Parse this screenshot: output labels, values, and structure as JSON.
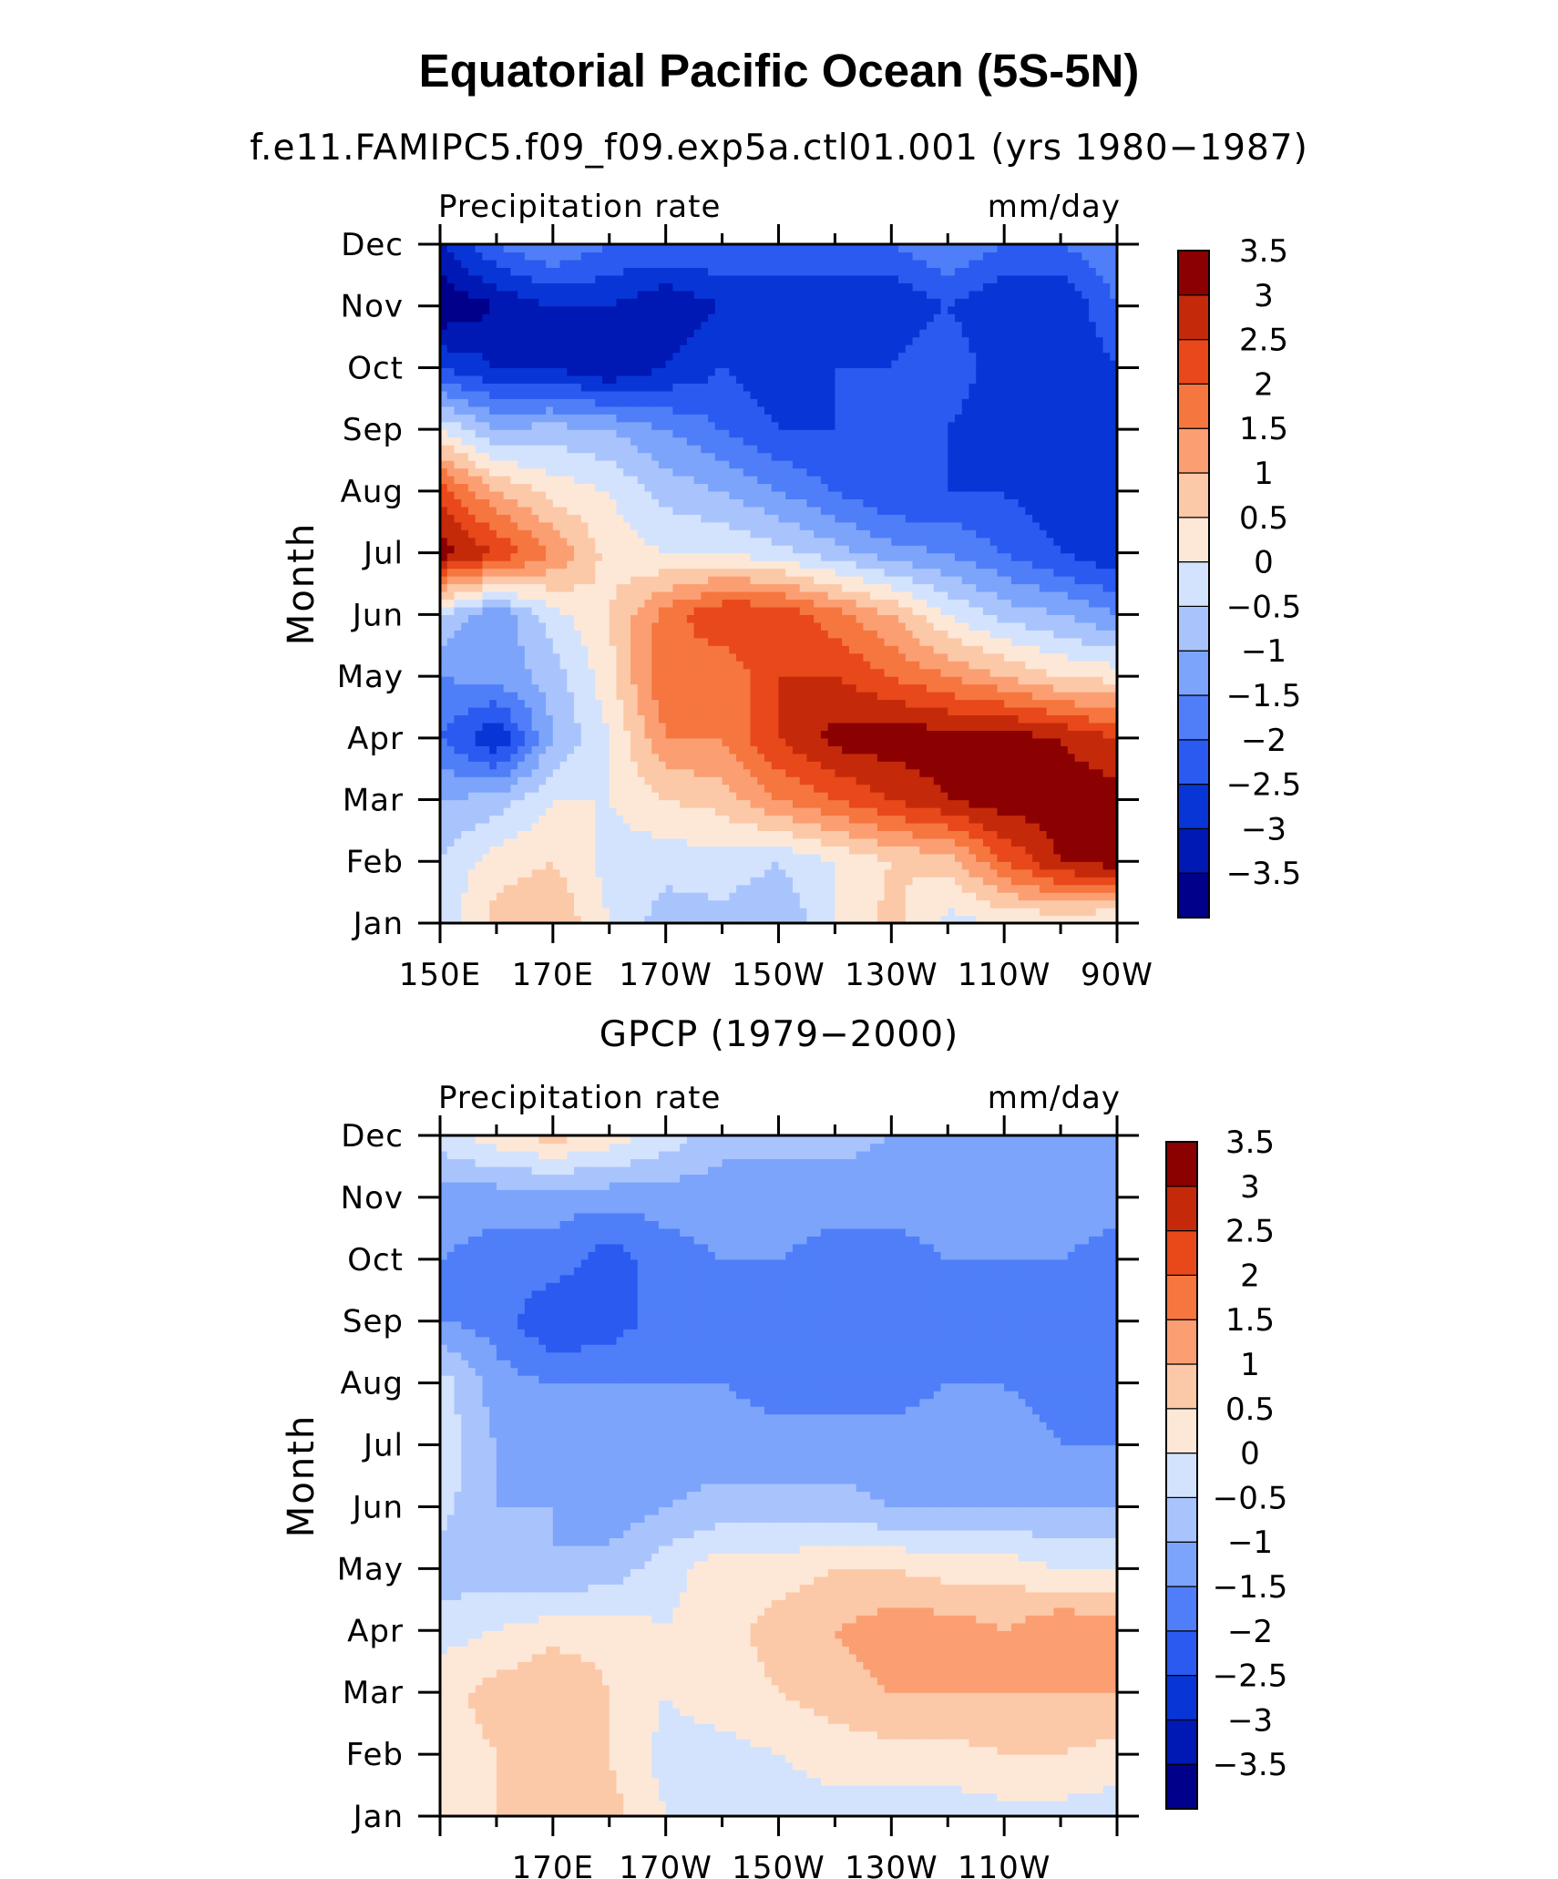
{
  "figure": {
    "title": "Equatorial Pacific Ocean (5S-5N)",
    "palette": [
      "#00008b",
      "#0018b4",
      "#0836d6",
      "#2a5af0",
      "#4f7ef8",
      "#7ca4fb",
      "#a9c4fd",
      "#d3e3fd",
      "#fde8d8",
      "#fcc9a8",
      "#fb9f73",
      "#f6763f",
      "#e8481a",
      "#c42a0a",
      "#8b0000"
    ],
    "levels": [
      "-3.5",
      "-3",
      "-2.5",
      "-2",
      "-1.5",
      "-1",
      "-0.5",
      "0",
      "0.5",
      "1",
      "1.5",
      "2",
      "2.5",
      "3",
      "3.5"
    ],
    "months": [
      "Jan",
      "Feb",
      "Mar",
      "Apr",
      "May",
      "Jun",
      "Jul",
      "Aug",
      "Sep",
      "Oct",
      "Nov",
      "Dec"
    ]
  },
  "chart_data": [
    {
      "type": "heatmap",
      "title": "f.e11.FAMIPC5.f09_f09.exp5a.ctl01.001 (yrs 1980−1987)",
      "subtitle_left": "Precipitation rate",
      "subtitle_right": "mm/day",
      "ylabel": "Month",
      "x_ticklabels": [
        "150E",
        "170E",
        "170W",
        "150W",
        "130W",
        "110W",
        "90W"
      ],
      "y_ticklabels": [
        "Jan",
        "Feb",
        "Mar",
        "Apr",
        "May",
        "Jun",
        "Jul",
        "Aug",
        "Sep",
        "Oct",
        "Nov",
        "Dec"
      ],
      "xlim": [
        "150E",
        "90W"
      ],
      "legend": "right",
      "colorbar_labels": [
        "-3.5",
        "-3",
        "-2.5",
        "-2",
        "-1.5",
        "-1",
        "-0.5",
        "0",
        "0.5",
        "1",
        "1.5",
        "2",
        "2.5",
        "3",
        "3.5"
      ],
      "longitudes": [
        "150E",
        "160E",
        "170E",
        "180",
        "170W",
        "160W",
        "150W",
        "140W",
        "130W",
        "120W",
        "110W",
        "100W",
        "90W"
      ],
      "rows": [
        {
          "month": "Jan",
          "values": [
            0.2,
            1.2,
            1.5,
            0.5,
            -0.3,
            -0.2,
            -0.5,
            0.5,
            1.2,
            0.3,
            0.5,
            0.5,
            0.3
          ]
        },
        {
          "month": "Feb",
          "values": [
            0.0,
            0.8,
            1.0,
            0.3,
            0.2,
            0.3,
            0.0,
            0.5,
            1.0,
            1.2,
            2.5,
            3.5,
            3.8
          ]
        },
        {
          "month": "Mar",
          "values": [
            -0.5,
            -0.3,
            0.5,
            0.5,
            1.0,
            1.2,
            2.0,
            2.5,
            3.0,
            3.5,
            3.8,
            3.8,
            3.8
          ]
        },
        {
          "month": "Apr",
          "values": [
            -1.5,
            -2.5,
            -0.5,
            0.5,
            2.0,
            2.0,
            3.0,
            3.7,
            3.8,
            3.8,
            3.8,
            3.5,
            3.0
          ]
        },
        {
          "month": "May",
          "values": [
            -1.0,
            -0.8,
            -0.3,
            0.8,
            2.5,
            2.0,
            3.0,
            3.0,
            2.5,
            2.0,
            1.5,
            1.0,
            0.8
          ]
        },
        {
          "month": "Jun",
          "values": [
            0.0,
            -1.0,
            0.3,
            1.0,
            2.2,
            3.0,
            3.0,
            2.2,
            1.5,
            0.5,
            -0.2,
            -0.5,
            -1.0
          ]
        },
        {
          "month": "Jul",
          "values": [
            3.8,
            3.0,
            2.0,
            0.8,
            0.5,
            0.5,
            0.2,
            -0.3,
            -0.8,
            -1.0,
            -1.5,
            -2.0,
            -2.5
          ]
        },
        {
          "month": "Aug",
          "values": [
            2.8,
            1.5,
            0.8,
            0.5,
            -0.2,
            -0.5,
            -1.0,
            -1.5,
            -2.0,
            -2.0,
            -2.0,
            -2.5,
            -2.5
          ]
        },
        {
          "month": "Sep",
          "values": [
            0.5,
            -0.5,
            -0.3,
            -0.5,
            -1.0,
            -1.5,
            -2.0,
            -2.0,
            -2.0,
            -2.0,
            -2.5,
            -2.5,
            -2.5
          ]
        },
        {
          "month": "Oct",
          "values": [
            -2.0,
            -2.5,
            -2.5,
            -3.0,
            -2.5,
            -2.0,
            -2.5,
            -2.0,
            -2.0,
            -1.5,
            -2.5,
            -2.5,
            -2.0
          ]
        },
        {
          "month": "Nov",
          "values": [
            -3.5,
            -3.0,
            -2.5,
            -2.5,
            -3.0,
            -2.5,
            -2.5,
            -2.5,
            -2.5,
            -2.0,
            -2.5,
            -2.5,
            -1.5
          ]
        },
        {
          "month": "Dec",
          "values": [
            -2.5,
            -1.5,
            -1.0,
            -1.5,
            -1.5,
            -1.5,
            -1.5,
            -1.5,
            -1.5,
            -1.0,
            -1.5,
            -1.5,
            -1.0
          ]
        }
      ]
    },
    {
      "type": "heatmap",
      "title": "GPCP (1979−2000)",
      "subtitle_left": "Precipitation rate",
      "subtitle_right": "mm/day",
      "ylabel": "Month",
      "x_ticklabels": [
        "170E",
        "170W",
        "150W",
        "130W",
        "110W"
      ],
      "y_ticklabels": [
        "Jan",
        "Feb",
        "Mar",
        "Apr",
        "May",
        "Jun",
        "Jul",
        "Aug",
        "Sep",
        "Oct",
        "Nov",
        "Dec"
      ],
      "xlim": [
        "150E",
        "90W"
      ],
      "legend": "right",
      "colorbar_labels": [
        "-3.5",
        "-3",
        "-2.5",
        "-2",
        "-1.5",
        "-1",
        "-0.5",
        "0",
        "0.5",
        "1",
        "1.5",
        "2",
        "2.5",
        "3",
        "3.5"
      ],
      "longitudes": [
        "150E",
        "160E",
        "170E",
        "180",
        "170W",
        "160W",
        "150W",
        "140W",
        "130W",
        "120W",
        "110W",
        "100W",
        "90W"
      ],
      "rows": [
        {
          "month": "Jan",
          "values": [
            0.5,
            1.0,
            1.5,
            1.2,
            0.5,
            0.2,
            0.2,
            0.2,
            0.2,
            0.2,
            0.3,
            0.3,
            0.2
          ]
        },
        {
          "month": "Feb",
          "values": [
            0.8,
            1.0,
            1.2,
            1.0,
            0.3,
            0.3,
            0.5,
            0.8,
            0.8,
            0.8,
            1.0,
            1.0,
            0.8
          ]
        },
        {
          "month": "Mar",
          "values": [
            0.8,
            1.2,
            1.5,
            1.0,
            0.5,
            0.8,
            1.0,
            1.2,
            1.5,
            1.5,
            1.5,
            1.5,
            1.5
          ]
        },
        {
          "month": "Apr",
          "values": [
            0.3,
            0.5,
            0.8,
            0.8,
            0.5,
            0.8,
            1.2,
            1.5,
            1.8,
            1.8,
            1.5,
            2.0,
            1.8
          ]
        },
        {
          "month": "May",
          "values": [
            -0.3,
            -0.3,
            -0.5,
            -0.3,
            0.3,
            0.8,
            0.8,
            1.0,
            1.0,
            0.8,
            0.8,
            0.5,
            0.5
          ]
        },
        {
          "month": "Jun",
          "values": [
            0.2,
            -0.5,
            -0.5,
            -0.8,
            -0.5,
            -0.3,
            -0.3,
            -0.3,
            -0.5,
            -0.5,
            -0.5,
            -0.5,
            -0.5
          ]
        },
        {
          "month": "Jul",
          "values": [
            0.3,
            -0.5,
            -0.8,
            -0.8,
            -0.8,
            -0.8,
            -0.8,
            -0.8,
            -0.8,
            -0.8,
            -0.8,
            -1.0,
            -1.0
          ]
        },
        {
          "month": "Aug",
          "values": [
            0.3,
            -0.8,
            -1.0,
            -1.0,
            -1.0,
            -1.0,
            -1.2,
            -1.2,
            -1.2,
            -1.0,
            -1.0,
            -1.2,
            -1.2
          ]
        },
        {
          "month": "Sep",
          "values": [
            -1.0,
            -1.2,
            -2.0,
            -1.8,
            -1.2,
            -1.0,
            -1.2,
            -1.3,
            -1.3,
            -1.2,
            -1.0,
            -1.2,
            -1.3
          ]
        },
        {
          "month": "Oct",
          "values": [
            -1.0,
            -1.2,
            -1.2,
            -1.8,
            -1.2,
            -1.0,
            -1.0,
            -1.2,
            -1.2,
            -1.0,
            -1.0,
            -1.0,
            -1.2
          ]
        },
        {
          "month": "Nov",
          "values": [
            -0.8,
            -0.8,
            -0.8,
            -0.8,
            -0.8,
            -0.8,
            -0.8,
            -0.8,
            -0.8,
            -0.8,
            -0.8,
            -0.8,
            -0.8
          ]
        },
        {
          "month": "Dec",
          "values": [
            0.3,
            0.8,
            1.2,
            0.8,
            0.3,
            -0.3,
            -0.3,
            -0.3,
            -0.5,
            -0.5,
            -0.5,
            -0.5,
            -0.5
          ]
        }
      ]
    }
  ]
}
